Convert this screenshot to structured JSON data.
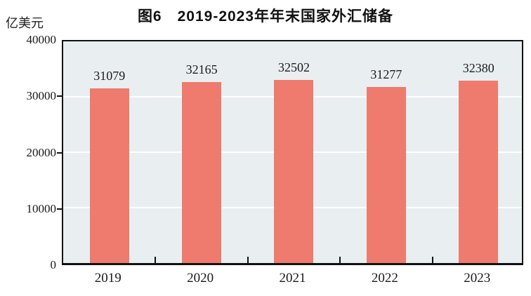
{
  "title": "图6　2019-2023年年末国家外汇储备",
  "unit_label": "亿美元",
  "colors": {
    "bar": "#ee7b6e",
    "plot_background": "#e9eef0",
    "gridline": "#ffffff",
    "axis": "#111111",
    "text": "#1a1a1a"
  },
  "chart_data": {
    "type": "bar",
    "title": "图6　2019-2023年年末国家外汇储备",
    "categories": [
      "2019",
      "2020",
      "2021",
      "2022",
      "2023"
    ],
    "values": [
      31079,
      32165,
      32502,
      31277,
      32380
    ],
    "data_labels": [
      "31079",
      "32165",
      "32502",
      "31277",
      "32380"
    ],
    "xlabel": "",
    "ylabel": "亿美元",
    "ylim": [
      0,
      40000
    ],
    "yticks": [
      0,
      10000,
      20000,
      30000,
      40000
    ],
    "grid": "horizontal",
    "legend_position": "none"
  }
}
